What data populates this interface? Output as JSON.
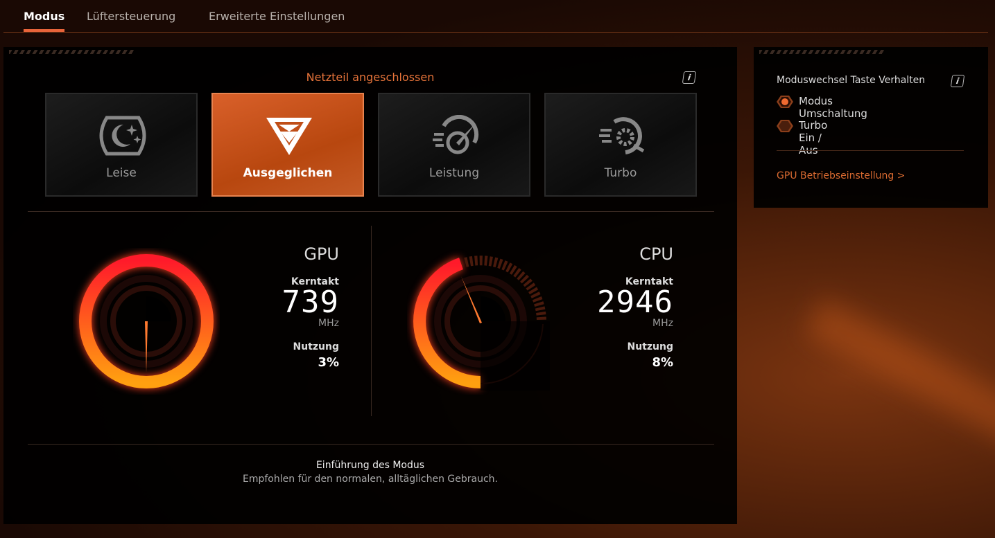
{
  "tabs": [
    {
      "label": "Modus",
      "active": true
    },
    {
      "label": "Lüftersteuerung"
    },
    {
      "label": "Erweiterte Einstellungen"
    }
  ],
  "main": {
    "power_status": "Netzteil angeschlossen",
    "info_icon": "i",
    "modes": [
      {
        "label": "Leise",
        "icon": "moon-stars-icon"
      },
      {
        "label": "Ausgeglichen",
        "icon": "balanced-chevron-icon",
        "active": true
      },
      {
        "label": "Leistung",
        "icon": "speedometer-icon"
      },
      {
        "label": "Turbo",
        "icon": "turbo-fan-icon"
      }
    ],
    "gpu": {
      "title": "GPU",
      "clock_label": "Kerntakt",
      "clock_value": "739",
      "clock_unit": "MHz",
      "usage_label": "Nutzung",
      "usage_value": "3%"
    },
    "cpu": {
      "title": "CPU",
      "clock_label": "Kerntakt",
      "clock_value": "2946",
      "clock_unit": "MHz",
      "usage_label": "Nutzung",
      "usage_value": "8%"
    },
    "intro_title": "Einführung des Modus",
    "intro_text": "Empfohlen für den normalen, alltäglichen Gebrauch."
  },
  "side": {
    "title": "Moduswechsel Taste Verhalten",
    "info_icon": "i",
    "options": [
      {
        "label": "Modus Umschaltung",
        "selected": true
      },
      {
        "label": "Turbo Ein / Aus",
        "selected": false
      }
    ],
    "gpu_link": "GPU Betriebseinstellung >"
  },
  "colors": {
    "accent": "#e8643a",
    "active_mode": "#c4521a",
    "gauge_start": "#ff1a2a",
    "gauge_end": "#ffa010"
  }
}
